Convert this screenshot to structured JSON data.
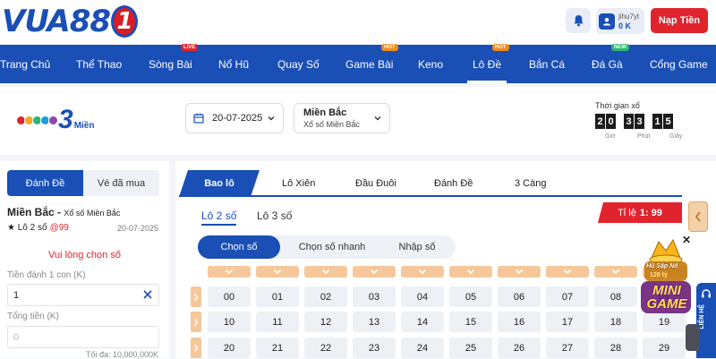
{
  "header": {
    "logo": {
      "text_main": "VUA88",
      "text_badge": "1"
    },
    "user": {
      "username": "jihu7yt",
      "balance": "0 K"
    },
    "deposit_label": "Nạp Tiền"
  },
  "nav": {
    "items": [
      {
        "label": "Trang Chủ"
      },
      {
        "label": "Thể Thao"
      },
      {
        "label": "Sòng Bài",
        "badge": "LIVE"
      },
      {
        "label": "Nổ Hũ"
      },
      {
        "label": "Quay Số"
      },
      {
        "label": "Game Bài",
        "badge": "HOT"
      },
      {
        "label": "Keno"
      },
      {
        "label": "Lô Đề",
        "badge": "HOT"
      },
      {
        "label": "Bắn Cá"
      },
      {
        "label": "Đá Gà",
        "badge": "NEW"
      },
      {
        "label": "Cổng Game"
      }
    ],
    "active_index": 7
  },
  "lottery": {
    "brand_big": "3",
    "brand_small": "Miền",
    "date": "20-07-2025",
    "region_title": "Miền Bắc",
    "region_sub": "Xổ số Miền Bắc",
    "timer_label": "Thời gian xổ",
    "timer_digits": [
      "2",
      "0",
      "3",
      "3",
      "1",
      "5"
    ],
    "timer_units": [
      "Giờ",
      "Phút",
      "Giây"
    ]
  },
  "left_panel": {
    "tabs": [
      "Đánh Đề",
      "Vé đã mua"
    ],
    "region": "Miền Bắc",
    "region_sub": "Xổ số Miền Bắc",
    "bet_type": "Lô 2 số",
    "odds": "@99",
    "date": "20-07-2025",
    "warning": "Vui lòng chọn số",
    "stake_label": "Tiền đánh 1 con (K)",
    "stake_value": "1",
    "total_label": "Tổng tiền (K)",
    "total_placeholder": "0",
    "max_label": "Tối đa: 10,000,000K"
  },
  "main_panel": {
    "tabs": [
      "Bao lô",
      "Lô Xiên",
      "Đầu Đuôi",
      "Đánh Đề",
      "3 Càng"
    ],
    "subtabs": [
      "Lô 2 số",
      "Lô 3 số"
    ],
    "rate_label": "Tỉ lệ",
    "rate_value": "1: 99",
    "modes": [
      "Chọn số",
      "Chọn số nhanh",
      "Nhập số"
    ],
    "numbers": [
      [
        "00",
        "01",
        "02",
        "03",
        "04",
        "05",
        "06",
        "07",
        "08",
        "09"
      ],
      [
        "10",
        "11",
        "12",
        "13",
        "14",
        "15",
        "16",
        "17",
        "18",
        "19"
      ],
      [
        "20",
        "21",
        "22",
        "23",
        "24",
        "25",
        "26",
        "27",
        "28",
        "29"
      ]
    ]
  },
  "side": {
    "promo_sub": "Hũ Sập Nổ",
    "promo_amount": "128 tỷ",
    "promo_title": "MINI GAME",
    "contact_label": "LIÊN HỆ"
  },
  "colors": {
    "brand_blue": "#1a4fb5",
    "accent_red": "#e0242d",
    "head_orange": "#f6c79a"
  }
}
